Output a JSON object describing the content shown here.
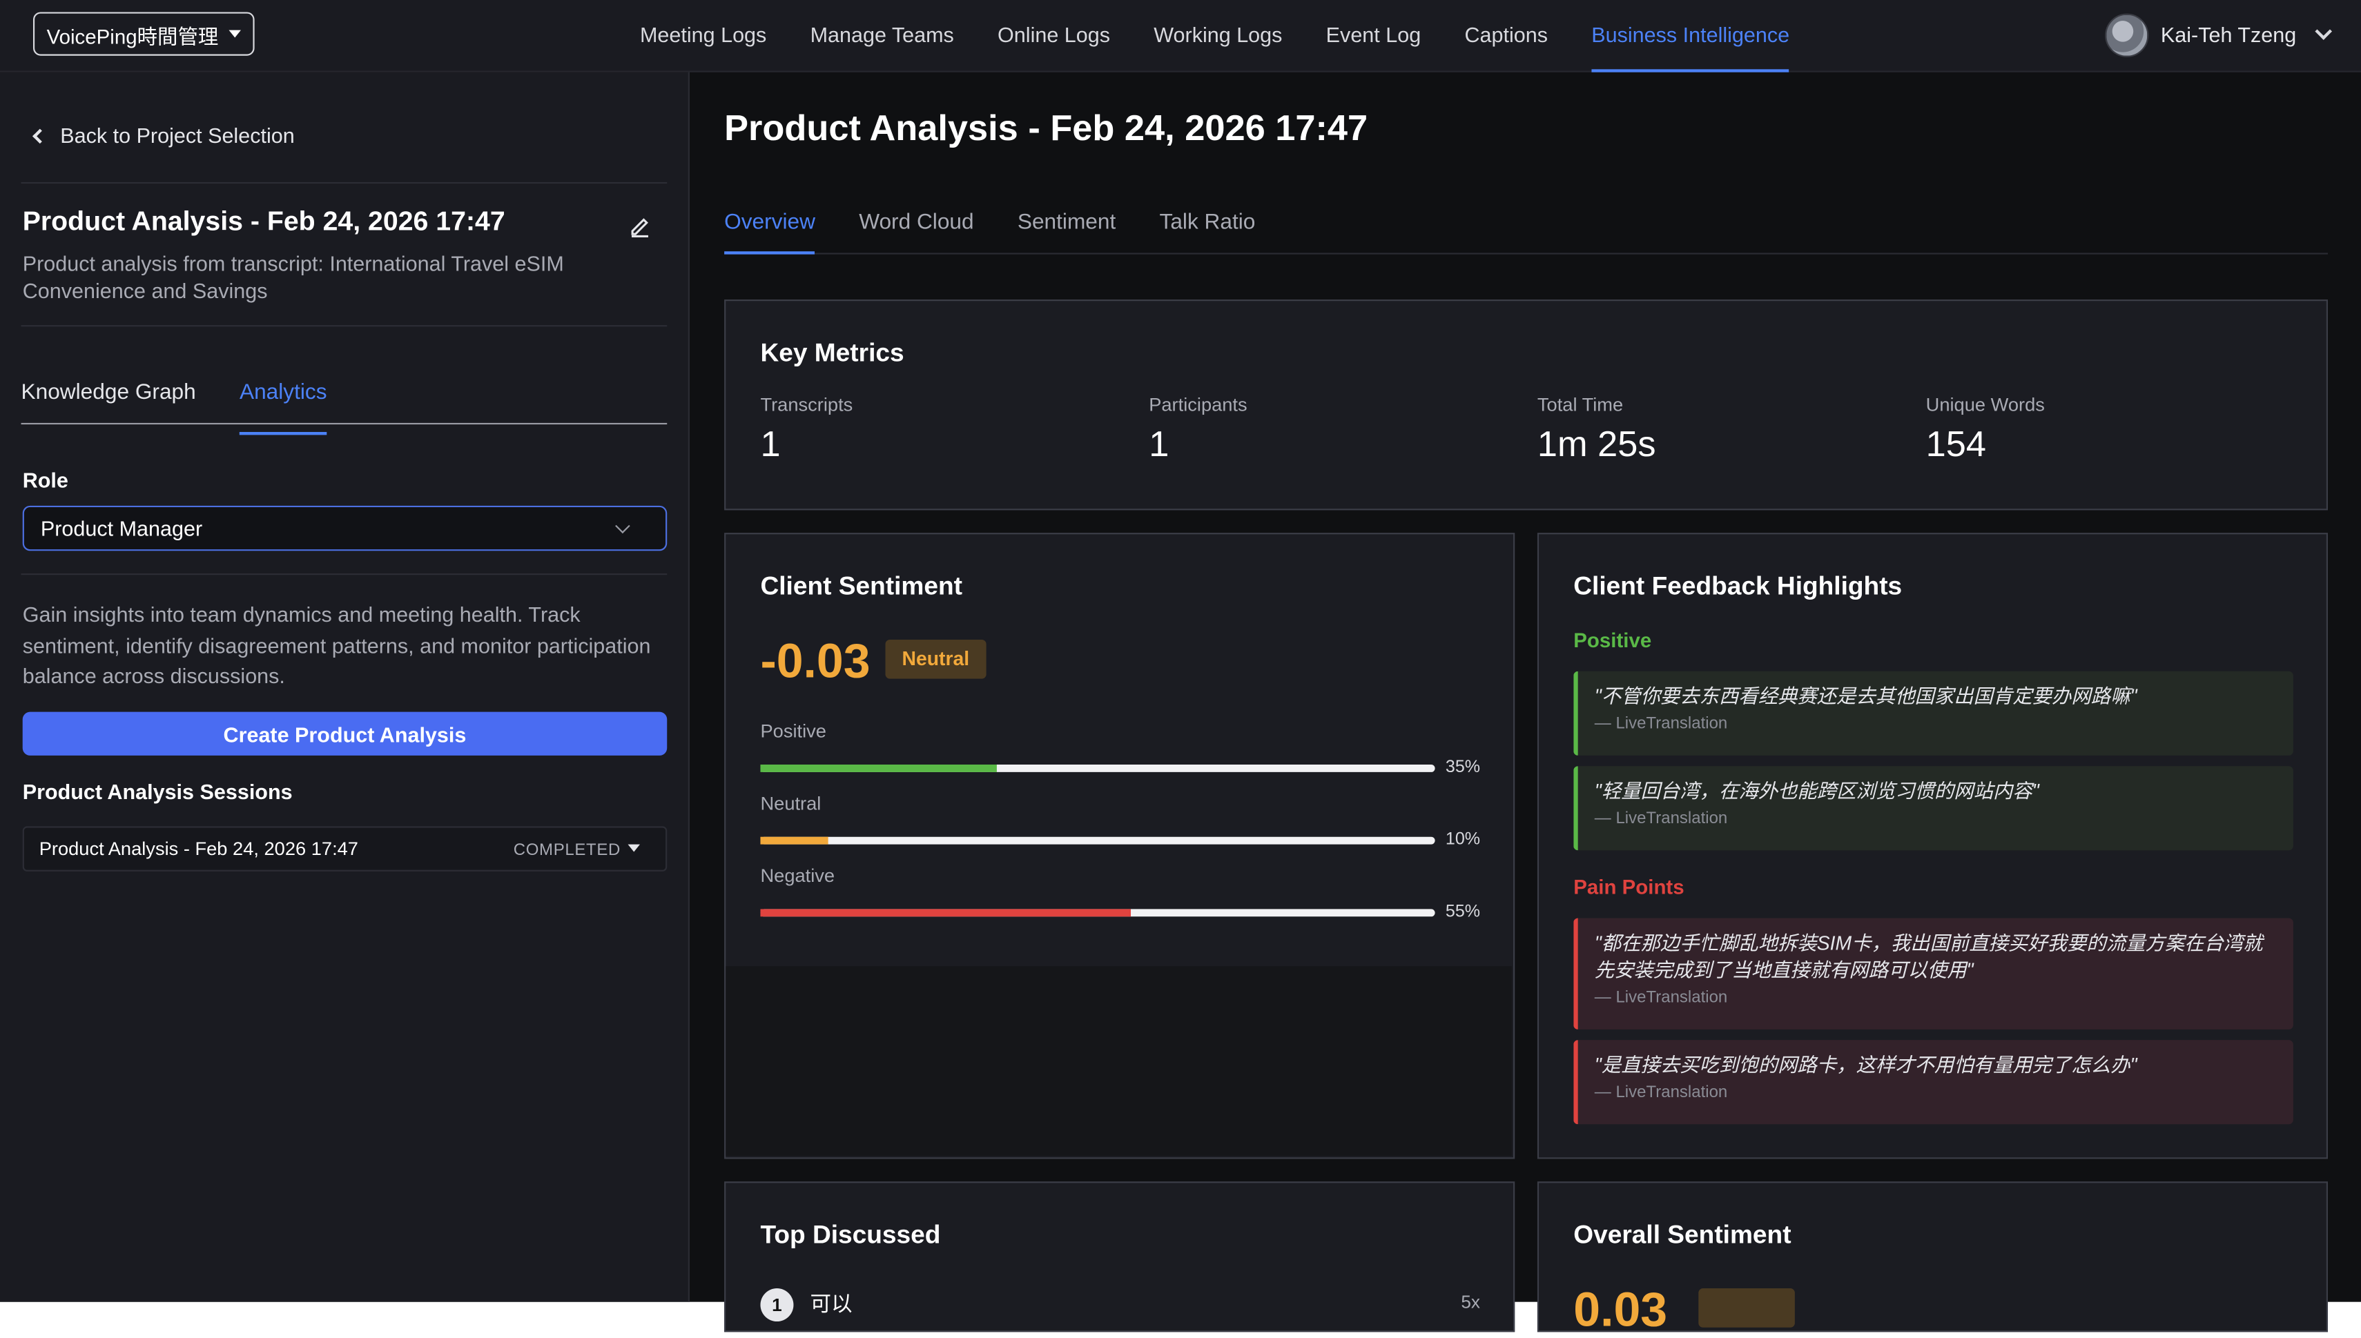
{
  "topbar": {
    "workspace": "VoicePing時間管理",
    "nav": [
      "Meeting Logs",
      "Manage Teams",
      "Online Logs",
      "Working Logs",
      "Event Log",
      "Captions",
      "Business Intelligence"
    ],
    "active_nav": "Business Intelligence",
    "user_name": "Kai-Teh Tzeng"
  },
  "sidebar": {
    "back_label": "Back to Project Selection",
    "title": "Product Analysis - Feb 24, 2026 17:47",
    "description": "Product analysis from transcript: International Travel eSIM Convenience and Savings",
    "tabs": [
      "Knowledge Graph",
      "Analytics"
    ],
    "active_tab": "Analytics",
    "role_label": "Role",
    "role_value": "Product Manager",
    "insight": "Gain insights into team dynamics and meeting health. Track sentiment, identify disagreement patterns, and monitor participation balance across discussions.",
    "create_button": "Create Product Analysis",
    "sessions_label": "Product Analysis Sessions",
    "sessions": [
      {
        "name": "Product Analysis - Feb 24, 2026 17:47",
        "status": "COMPLETED"
      }
    ]
  },
  "main": {
    "title": "Product Analysis - Feb 24, 2026 17:47",
    "tabs": [
      "Overview",
      "Word Cloud",
      "Sentiment",
      "Talk Ratio"
    ],
    "active_tab": "Overview",
    "key_metrics": {
      "title": "Key Metrics",
      "items": [
        {
          "label": "Transcripts",
          "value": "1"
        },
        {
          "label": "Participants",
          "value": "1"
        },
        {
          "label": "Total Time",
          "value": "1m 25s"
        },
        {
          "label": "Unique Words",
          "value": "154"
        }
      ]
    },
    "client_sentiment": {
      "title": "Client Sentiment",
      "score": "-0.03",
      "badge": "Neutral",
      "bars": [
        {
          "label": "Positive",
          "pct_text": "35%",
          "pct": 35,
          "color": "#5ab947"
        },
        {
          "label": "Neutral",
          "pct_text": "10%",
          "pct": 10,
          "color": "#f2a93b"
        },
        {
          "label": "Negative",
          "pct_text": "55%",
          "pct": 55,
          "color": "#e0433f"
        }
      ]
    },
    "feedback": {
      "title": "Client Feedback Highlights",
      "positive_label": "Positive",
      "positive": [
        {
          "text": "\"不管你要去东西看经典赛还是去其他国家出国肯定要办网路嘛\"",
          "source": "— LiveTranslation"
        },
        {
          "text": "\"轻量回台湾，在海外也能跨区浏览习惯的网站内容\"",
          "source": "— LiveTranslation"
        }
      ],
      "pain_label": "Pain Points",
      "pain": [
        {
          "text": "\"都在那边手忙脚乱地拆装SIM卡，我出国前直接买好我要的流量方案在台湾就先安装完成到了当地直接就有网路可以使用\"",
          "source": "— LiveTranslation"
        },
        {
          "text": "\"是直接去买吃到饱的网路卡，这样才不用怕有量用完了怎么办\"",
          "source": "— LiveTranslation"
        }
      ]
    },
    "top_discussed": {
      "title": "Top Discussed",
      "items": [
        {
          "rank": "1",
          "word": "可以",
          "count": "5x"
        }
      ]
    },
    "overall_sentiment": {
      "title": "Overall Sentiment",
      "score": "0.03"
    }
  }
}
